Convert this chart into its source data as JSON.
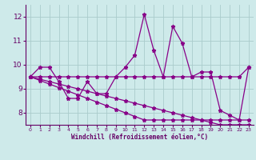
{
  "title": "",
  "xlabel": "Windchill (Refroidissement éolien,°C)",
  "background_color": "#ceeaea",
  "grid_color": "#aacccc",
  "line_color": "#880088",
  "xlim": [
    -0.5,
    23.5
  ],
  "ylim": [
    7.5,
    12.5
  ],
  "yticks": [
    8,
    9,
    10,
    11,
    12
  ],
  "xticks": [
    0,
    1,
    2,
    3,
    4,
    5,
    6,
    7,
    8,
    9,
    10,
    11,
    12,
    13,
    14,
    15,
    16,
    17,
    18,
    19,
    20,
    21,
    22,
    23
  ],
  "series": [
    [
      9.5,
      9.9,
      9.9,
      9.3,
      8.6,
      8.6,
      9.3,
      8.8,
      8.8,
      9.5,
      9.9,
      10.4,
      12.1,
      10.6,
      9.5,
      11.6,
      10.9,
      9.5,
      9.7,
      9.7,
      8.1,
      7.9,
      7.7,
      9.9
    ],
    [
      9.5,
      9.5,
      9.5,
      9.5,
      9.5,
      9.5,
      9.5,
      9.5,
      9.5,
      9.5,
      9.5,
      9.5,
      9.5,
      9.5,
      9.5,
      9.5,
      9.5,
      9.5,
      9.5,
      9.5,
      9.5,
      9.5,
      9.5,
      9.9
    ],
    [
      9.5,
      9.35,
      9.2,
      9.05,
      8.9,
      8.75,
      8.6,
      8.45,
      8.3,
      8.15,
      8.0,
      7.85,
      7.7,
      7.7,
      7.7,
      7.7,
      7.7,
      7.7,
      7.7,
      7.7,
      7.7,
      7.7,
      7.7,
      7.7
    ],
    [
      9.5,
      9.4,
      9.3,
      9.2,
      9.1,
      9.0,
      8.9,
      8.8,
      8.7,
      8.6,
      8.5,
      8.4,
      8.3,
      8.2,
      8.1,
      8.0,
      7.9,
      7.8,
      7.7,
      7.6,
      7.5,
      7.5,
      7.5,
      7.5
    ]
  ]
}
